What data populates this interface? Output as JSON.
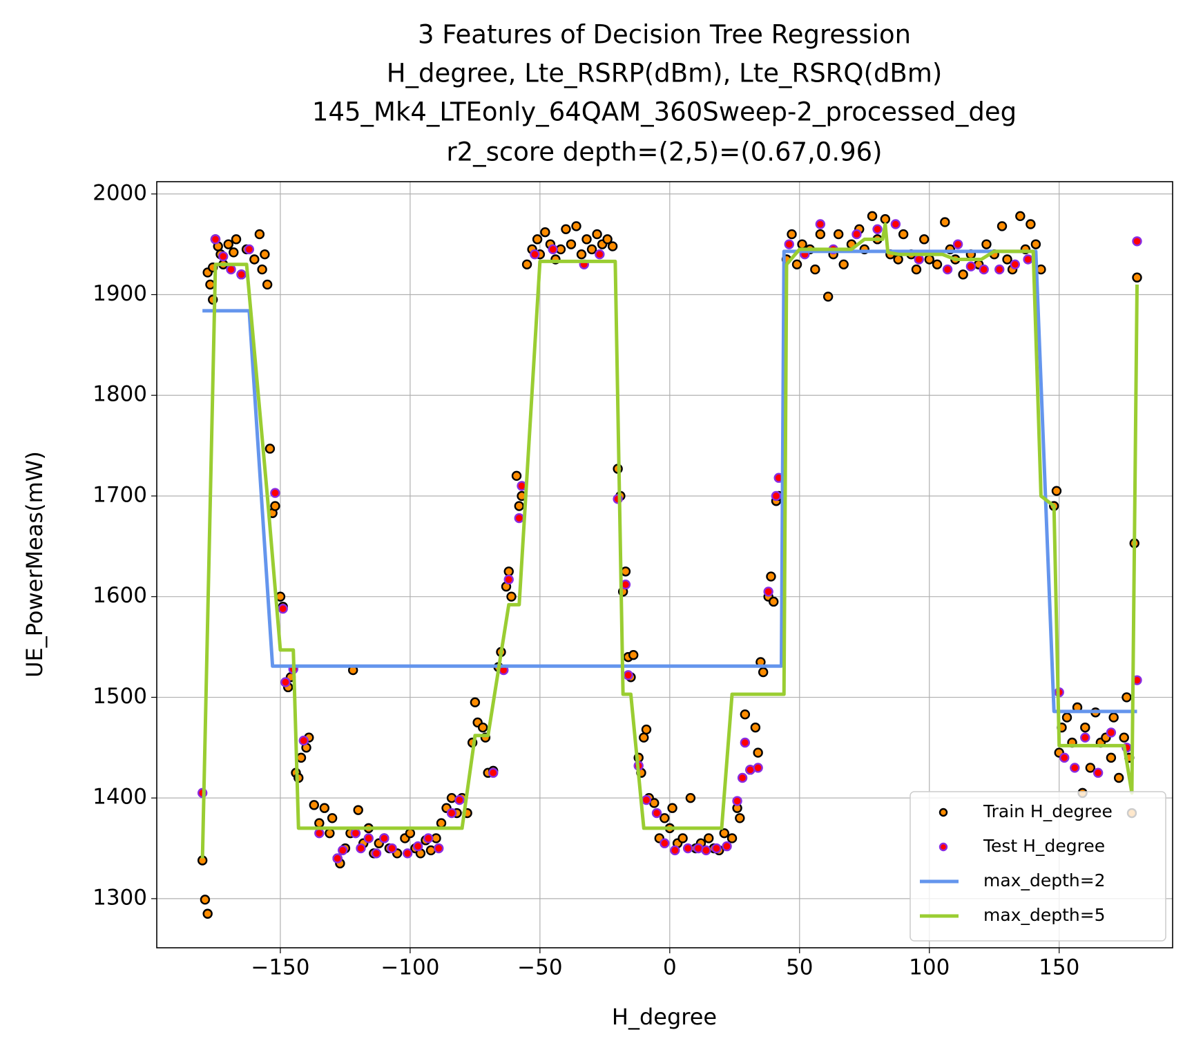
{
  "chart_data": {
    "type": "scatter",
    "title": [
      "3 Features of Decision Tree Regression",
      "H_degree, Lte_RSRP(dBm), Lte_RSRQ(dBm)",
      "145_Mk4_LTEonly_64QAM_360Sweep-2_processed_deg",
      "r2_score depth=(2,5)=(0.67,0.96)"
    ],
    "xlabel": "H_degree",
    "ylabel": "UE_PowerMeas(mW)",
    "xlim": [
      -197.6,
      193.7
    ],
    "ylim": [
      1251.2,
      2012.2
    ],
    "xticks": [
      {
        "value": -150,
        "label": "−150"
      },
      {
        "value": -100,
        "label": "−100"
      },
      {
        "value": -50,
        "label": "−50"
      },
      0,
      50,
      100,
      150
    ],
    "yticks": [
      1300,
      1400,
      1500,
      1600,
      1700,
      1800,
      1900,
      2000
    ],
    "grid": true,
    "legend": "lower right",
    "series": [
      {
        "name": "Train H_degree",
        "kind": "scatter",
        "color": "#ff8c00",
        "edgecolor": "#000000",
        "x": [
          -180,
          -179,
          -178,
          -178,
          -177,
          -176,
          -176,
          -175,
          -174,
          -173,
          -172,
          -170,
          -168,
          -167,
          -165,
          -163,
          -160,
          -158,
          -157,
          -156,
          -155,
          -154,
          -153,
          -152,
          -150,
          -149,
          -148,
          -147,
          -146,
          -144,
          -143,
          -142,
          -140,
          -139,
          -137,
          -135,
          -133,
          -131,
          -130,
          -128,
          -127,
          -125,
          -123,
          -122,
          -120,
          -118,
          -116,
          -114,
          -112,
          -110,
          -108,
          -105,
          -102,
          -100,
          -98,
          -96,
          -94,
          -92,
          -90,
          -88,
          -86,
          -84,
          -82,
          -80,
          -78,
          -76,
          -75,
          -74,
          -72,
          -71,
          -70,
          -68,
          -66,
          -65,
          -63,
          -62,
          -61,
          -59,
          -58,
          -57,
          -55,
          -53,
          -51,
          -50,
          -48,
          -46,
          -44,
          -42,
          -40,
          -38,
          -36,
          -34,
          -32,
          -30,
          -28,
          -26,
          -24,
          -22,
          -20,
          -19,
          -18,
          -17,
          -16,
          -15,
          -14,
          -12,
          -11,
          -10,
          -9,
          -8,
          -6,
          -4,
          -2,
          0,
          1,
          3,
          5,
          8,
          10,
          12,
          15,
          17,
          19,
          21,
          24,
          26,
          27,
          29,
          31,
          33,
          34,
          35,
          36,
          38,
          39,
          40,
          41,
          42,
          45,
          47,
          49,
          51,
          54,
          56,
          58,
          61,
          63,
          65,
          67,
          70,
          73,
          75,
          78,
          80,
          83,
          85,
          88,
          90,
          93,
          95,
          98,
          100,
          103,
          106,
          108,
          110,
          113,
          116,
          119,
          122,
          125,
          128,
          130,
          132,
          135,
          137,
          139,
          141,
          143,
          148,
          149,
          150,
          151,
          153,
          155,
          157,
          159,
          160,
          162,
          164,
          166,
          168,
          170,
          171,
          173,
          175,
          176,
          177,
          178,
          179,
          180
        ],
        "values": [
          1338,
          1299,
          1285,
          1922,
          1910,
          1927,
          1895,
          1955,
          1948,
          1940,
          1930,
          1950,
          1942,
          1955,
          1920,
          1945,
          1935,
          1960,
          1925,
          1940,
          1910,
          1747,
          1683,
          1690,
          1600,
          1590,
          1515,
          1510,
          1520,
          1425,
          1420,
          1440,
          1450,
          1460,
          1393,
          1375,
          1390,
          1365,
          1380,
          1340,
          1335,
          1350,
          1365,
          1527,
          1388,
          1355,
          1370,
          1345,
          1355,
          1360,
          1350,
          1345,
          1360,
          1365,
          1350,
          1345,
          1358,
          1348,
          1360,
          1375,
          1390,
          1400,
          1385,
          1400,
          1385,
          1455,
          1495,
          1475,
          1470,
          1460,
          1425,
          1427,
          1530,
          1545,
          1610,
          1625,
          1600,
          1720,
          1690,
          1700,
          1930,
          1945,
          1955,
          1940,
          1962,
          1950,
          1935,
          1945,
          1965,
          1950,
          1968,
          1940,
          1955,
          1945,
          1960,
          1950,
          1955,
          1948,
          1727,
          1700,
          1605,
          1625,
          1540,
          1520,
          1542,
          1440,
          1425,
          1460,
          1468,
          1400,
          1395,
          1360,
          1380,
          1370,
          1390,
          1355,
          1360,
          1400,
          1350,
          1355,
          1360,
          1350,
          1348,
          1365,
          1360,
          1390,
          1380,
          1483,
          1428,
          1470,
          1445,
          1535,
          1525,
          1600,
          1620,
          1595,
          1695,
          1700,
          1935,
          1960,
          1930,
          1950,
          1945,
          1925,
          1960,
          1898,
          1940,
          1960,
          1930,
          1950,
          1965,
          1945,
          1978,
          1955,
          1975,
          1940,
          1935,
          1960,
          1940,
          1925,
          1955,
          1935,
          1930,
          1972,
          1945,
          1935,
          1920,
          1940,
          1930,
          1950,
          1940,
          1968,
          1935,
          1925,
          1978,
          1945,
          1970,
          1950,
          1925,
          1690,
          1705,
          1445,
          1470,
          1480,
          1455,
          1490,
          1405,
          1470,
          1430,
          1485,
          1455,
          1460,
          1440,
          1480,
          1420,
          1460,
          1500,
          1440,
          1385,
          1653,
          1917
        ]
      },
      {
        "name": "Test H_degree",
        "kind": "scatter",
        "color": "#ff0000",
        "edgecolor": "#8a2be2",
        "x": [
          -180,
          -175,
          -172,
          -169,
          -165,
          -162,
          -152,
          -149,
          -148,
          -145,
          -141,
          -135,
          -128,
          -126,
          -121,
          -119,
          -116,
          -113,
          -110,
          -107,
          -101,
          -97,
          -93,
          -89,
          -84,
          -81,
          -68,
          -64,
          -62,
          -58,
          -57,
          -52,
          -45,
          -33,
          -27,
          -20,
          -17,
          -16,
          -12,
          -9,
          -5,
          -2,
          2,
          7,
          11,
          14,
          18,
          22,
          26,
          28,
          29,
          31,
          34,
          38,
          41,
          42,
          46,
          52,
          58,
          63,
          72,
          80,
          87,
          96,
          107,
          111,
          116,
          121,
          127,
          133,
          138,
          150,
          152,
          156,
          160,
          165,
          170,
          176,
          180,
          180
        ],
        "values": [
          1405,
          1955,
          1938,
          1925,
          1920,
          1945,
          1703,
          1588,
          1515,
          1528,
          1457,
          1365,
          1340,
          1348,
          1365,
          1350,
          1360,
          1345,
          1360,
          1350,
          1345,
          1352,
          1360,
          1350,
          1385,
          1398,
          1425,
          1527,
          1617,
          1678,
          1710,
          1940,
          1945,
          1930,
          1940,
          1697,
          1612,
          1522,
          1432,
          1398,
          1385,
          1355,
          1348,
          1350,
          1350,
          1348,
          1350,
          1352,
          1397,
          1420,
          1455,
          1428,
          1430,
          1605,
          1700,
          1718,
          1950,
          1940,
          1970,
          1945,
          1960,
          1965,
          1970,
          1935,
          1925,
          1950,
          1928,
          1925,
          1925,
          1930,
          1935,
          1505,
          1440,
          1430,
          1460,
          1425,
          1465,
          1450,
          1517,
          1953
        ]
      },
      {
        "name": "max_depth=2",
        "kind": "line",
        "color": "#6495ed",
        "x": [
          -180,
          -162,
          -153,
          43,
          44,
          141,
          148,
          180
        ],
        "values": [
          1884,
          1884,
          1531,
          1531,
          1943,
          1943,
          1486,
          1486
        ]
      },
      {
        "name": "max_depth=5",
        "kind": "line",
        "color": "#9acd32",
        "x": [
          -180,
          -175,
          -163,
          -155,
          -150,
          -145,
          -143,
          -80,
          -75,
          -70,
          -62,
          -58,
          -50,
          -21,
          -18,
          -15,
          -10,
          20,
          24,
          44,
          45,
          50,
          70,
          75,
          82,
          83,
          84,
          88,
          105,
          110,
          120,
          125,
          140,
          143,
          148,
          150,
          175,
          178,
          180
        ],
        "values": [
          1340,
          1930,
          1930,
          1700,
          1547,
          1547,
          1370,
          1370,
          1462,
          1462,
          1592,
          1592,
          1933,
          1933,
          1503,
          1503,
          1370,
          1370,
          1503,
          1503,
          1930,
          1945,
          1945,
          1955,
          1955,
          1970,
          1942,
          1940,
          1940,
          1935,
          1935,
          1943,
          1943,
          1700,
          1690,
          1452,
          1452,
          1405,
          1910
        ]
      }
    ]
  }
}
